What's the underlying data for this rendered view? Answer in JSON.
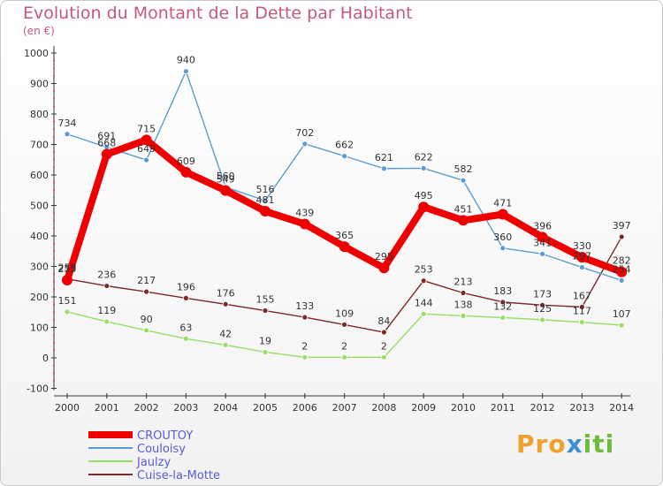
{
  "chart_data": {
    "type": "line",
    "title": "Evolution du Montant de la Dette par Habitant",
    "subtitle": "(en €)",
    "x": [
      "2000",
      "2001",
      "2002",
      "2003",
      "2004",
      "2005",
      "2006",
      "2007",
      "2008",
      "2009",
      "2010",
      "2011",
      "2012",
      "2013",
      "2014"
    ],
    "ylim": [
      -100,
      1000
    ],
    "yticks": [
      -100,
      0,
      100,
      200,
      300,
      400,
      500,
      600,
      700,
      800,
      900,
      1000
    ],
    "grid": false,
    "legend_placement": "bottom-left",
    "series": [
      {
        "name": "CROUTOY",
        "color": "#ee0000",
        "values": [
          255,
          668,
          715,
          609,
          549,
          481,
          439,
          365,
          295,
          495,
          451,
          471,
          396,
          330,
          282
        ]
      },
      {
        "name": "Couloisy",
        "color": "#5b9bd5",
        "values": [
          734,
          691,
          649,
          940,
          560,
          516,
          702,
          662,
          621,
          622,
          582,
          360,
          341,
          297,
          254
        ]
      },
      {
        "name": "Jaulzy",
        "color": "#99dd66",
        "values": [
          151,
          119,
          90,
          63,
          42,
          19,
          2,
          2,
          2,
          144,
          138,
          132,
          125,
          117,
          107
        ]
      },
      {
        "name": "Cuise-la-Motte",
        "color": "#7a2a2a",
        "values": [
          259,
          236,
          217,
          196,
          176,
          155,
          133,
          109,
          84,
          253,
          213,
          183,
          173,
          167,
          397
        ]
      }
    ]
  },
  "brand": {
    "p1": "Pro",
    "p2": "x",
    "p3": "iti"
  }
}
